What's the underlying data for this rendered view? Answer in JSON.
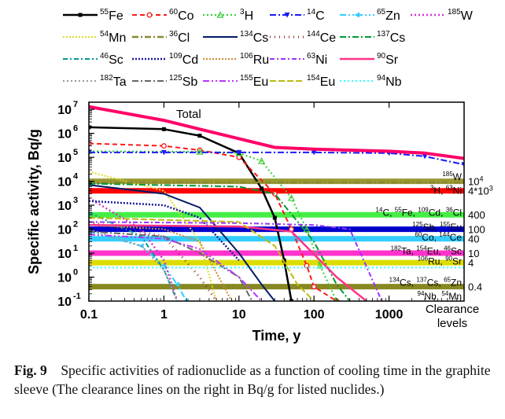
{
  "chart_data": {
    "type": "line",
    "xscale": "log",
    "yscale": "log",
    "xlim": [
      0.1,
      10000
    ],
    "ylim": [
      0.1,
      20000000
    ],
    "xlabel": "Time, y",
    "ylabel": "Specific activity, Bq/g",
    "x_ticks": [
      "0.1",
      "1",
      "10",
      "100",
      "1000"
    ],
    "y_ticks": [
      {
        "m": "10",
        "e": "7"
      },
      {
        "m": "10",
        "e": "6"
      },
      {
        "m": "10",
        "e": "5"
      },
      {
        "m": "10",
        "e": "4"
      },
      {
        "m": "10",
        "e": "3"
      },
      {
        "m": "10",
        "e": "2"
      },
      {
        "m": "10",
        "e": "1"
      },
      {
        "m": "10",
        "e": "0"
      },
      {
        "m": "10",
        "e": "-1"
      }
    ],
    "annotation_total": "Total",
    "legend": [
      {
        "sup": "55",
        "el": "Fe",
        "color": "#000000",
        "dash": "",
        "w": 2.5,
        "marker": "square"
      },
      {
        "sup": "60",
        "el": "Co",
        "color": "#ff1a1a",
        "dash": "6,4",
        "w": 2,
        "marker": "circle"
      },
      {
        "sup": "3",
        "el": "H",
        "color": "#33cc33",
        "dash": "2,3",
        "w": 2,
        "marker": "triangle"
      },
      {
        "sup": "14",
        "el": "C",
        "color": "#1a1aff",
        "dash": "8,3,2,3",
        "w": 2,
        "marker": "tri-down"
      },
      {
        "sup": "65",
        "el": "Zn",
        "color": "#33ccff",
        "dash": "8,3,2,3,2,3",
        "w": 2,
        "marker": "tri-left"
      },
      {
        "sup": "185",
        "el": "W",
        "color": "#cc33cc",
        "dash": "2,3",
        "w": 2.5,
        "marker": "none"
      },
      {
        "sup": "54",
        "el": "Mn",
        "color": "#dddd22",
        "dash": "2,2",
        "w": 2,
        "marker": "none"
      },
      {
        "sup": "36",
        "el": "Cl",
        "color": "#888833",
        "dash": "8,3,2,3",
        "w": 2.5,
        "marker": "none"
      },
      {
        "sup": "134",
        "el": "Cs",
        "color": "#001a66",
        "dash": "",
        "w": 2,
        "marker": "none"
      },
      {
        "sup": "144",
        "el": "Ce",
        "color": "#993333",
        "dash": "1,5",
        "w": 3,
        "marker": "none"
      },
      {
        "sup": "137",
        "el": "Cs",
        "color": "#009933",
        "dash": "8,3,2,3",
        "w": 2,
        "marker": "none"
      },
      {
        "sup": "46",
        "el": "Sc",
        "color": "#009999",
        "dash": "6,3,2,3",
        "w": 2,
        "marker": "none"
      },
      {
        "sup": "109",
        "el": "Cd",
        "color": "#1a1a99",
        "dash": "2,2",
        "w": 2.5,
        "marker": "none"
      },
      {
        "sup": "106",
        "el": "Ru",
        "color": "#cc8833",
        "dash": "2,2",
        "w": 2,
        "marker": "none"
      },
      {
        "sup": "63",
        "el": "Ni",
        "color": "#9933ff",
        "dash": "6,3,2,3",
        "w": 2,
        "marker": "none"
      },
      {
        "sup": "90",
        "el": "Sr",
        "color": "#ff3388",
        "dash": "",
        "w": 2.5,
        "marker": "none"
      },
      {
        "sup": "182",
        "el": "Ta",
        "color": "#999999",
        "dash": "2,3",
        "w": 2,
        "marker": "none"
      },
      {
        "sup": "125",
        "el": "Sb",
        "color": "#666666",
        "dash": "8,3,2,3",
        "w": 2,
        "marker": "none"
      },
      {
        "sup": "155",
        "el": "Eu",
        "color": "#bb33ff",
        "dash": "8,3,2,3,2,3",
        "w": 2,
        "marker": "none"
      },
      {
        "sup": "154",
        "el": "Eu",
        "color": "#bbbb11",
        "dash": "8,3",
        "w": 2,
        "marker": "none"
      },
      {
        "sup": "94",
        "el": "Nb",
        "color": "#33ffff",
        "dash": "2,3",
        "w": 2,
        "marker": "none"
      }
    ],
    "total": {
      "color": "#ff0066",
      "x": [
        0.1,
        1,
        3,
        10,
        30,
        100,
        1000,
        3000,
        10000
      ],
      "y": [
        13000000,
        3500000,
        1500000,
        600000,
        260000,
        220000,
        180000,
        150000,
        90000
      ]
    },
    "series": [
      {
        "name": "55Fe",
        "legend": 0,
        "x": [
          0.1,
          1,
          3,
          10,
          20,
          30,
          40,
          50
        ],
        "y": [
          1800000,
          1500000,
          800000,
          150000,
          5000,
          300,
          5,
          0.1
        ]
      },
      {
        "name": "60Co",
        "legend": 1,
        "x": [
          0.1,
          1,
          3,
          10,
          30,
          50,
          80,
          100,
          200
        ],
        "y": [
          380000,
          300000,
          200000,
          100000,
          3000,
          100,
          3,
          0.4,
          0.1
        ]
      },
      {
        "name": "3H",
        "legend": 2,
        "x": [
          0.1,
          3,
          10,
          20,
          50,
          80,
          120,
          200
        ],
        "y": [
          180000,
          170000,
          150000,
          70000,
          2000,
          100,
          3,
          0.1
        ]
      },
      {
        "name": "14C",
        "legend": 3,
        "x": [
          0.1,
          1,
          10,
          100,
          1000,
          3000,
          10000
        ],
        "y": [
          160000,
          160000,
          160000,
          160000,
          150000,
          110000,
          50000
        ]
      },
      {
        "name": "65Zn",
        "legend": 4,
        "x": [
          0.1,
          0.5,
          1,
          1.5,
          2
        ],
        "y": [
          80,
          20,
          3,
          0.5,
          0.1
        ]
      },
      {
        "name": "185W",
        "legend": 5,
        "x": [
          0.1,
          0.5,
          1,
          1.5
        ],
        "y": [
          2000,
          100,
          5,
          0.1
        ]
      },
      {
        "name": "54Mn",
        "legend": 6,
        "x": [
          0.1,
          1,
          3,
          5
        ],
        "y": [
          25000,
          4000,
          30,
          0.1
        ]
      },
      {
        "name": "36Cl",
        "legend": 7,
        "x": [
          0.1,
          10,
          100,
          1000,
          10000
        ],
        "y": [
          9000,
          9000,
          9000,
          9000,
          9000
        ]
      },
      {
        "name": "134Cs",
        "legend": 8,
        "x": [
          0.1,
          1,
          3,
          10,
          20,
          30
        ],
        "y": [
          7000,
          3000,
          800,
          10,
          0.5,
          0.1
        ]
      },
      {
        "name": "144Ce",
        "legend": 9,
        "x": [
          0.1,
          1,
          3,
          5
        ],
        "y": [
          200,
          50,
          1,
          0.1
        ]
      },
      {
        "name": "137Cs",
        "legend": 10,
        "x": [
          0.1,
          10,
          30,
          100,
          200,
          300
        ],
        "y": [
          8000,
          6000,
          3000,
          30,
          0.5,
          0.1
        ]
      },
      {
        "name": "46Sc",
        "legend": 11,
        "x": [
          0.1,
          0.5,
          1,
          1.5
        ],
        "y": [
          500,
          50,
          2,
          0.1
        ]
      },
      {
        "name": "109Cd",
        "legend": 12,
        "x": [
          0.1,
          1,
          3,
          10
        ],
        "y": [
          1500,
          1000,
          300,
          5
        ]
      },
      {
        "name": "106Ru",
        "legend": 13,
        "x": [
          0.1,
          1,
          3,
          8
        ],
        "y": [
          150,
          100,
          30,
          0.1
        ]
      },
      {
        "name": "63Ni",
        "legend": 14,
        "x": [
          0.1,
          10,
          100,
          300,
          800
        ],
        "y": [
          200,
          180,
          150,
          100,
          0.1
        ]
      },
      {
        "name": "90Sr",
        "legend": 15,
        "x": [
          0.1,
          10,
          50,
          200,
          500
        ],
        "y": [
          150,
          130,
          80,
          1,
          0.1
        ]
      },
      {
        "name": "182Ta",
        "legend": 16,
        "x": [
          0.1,
          0.5,
          1,
          1.5
        ],
        "y": [
          100,
          20,
          2,
          0.1
        ]
      },
      {
        "name": "125Sb",
        "legend": 17,
        "x": [
          0.1,
          1,
          3,
          10,
          15
        ],
        "y": [
          80,
          50,
          10,
          1,
          0.1
        ]
      },
      {
        "name": "155Eu",
        "legend": 18,
        "x": [
          0.1,
          1,
          3,
          10,
          20
        ],
        "y": [
          60,
          40,
          15,
          1,
          0.1
        ]
      },
      {
        "name": "154Eu",
        "legend": 19,
        "x": [
          0.1,
          10,
          30,
          60,
          100
        ],
        "y": [
          300,
          200,
          20,
          0.5,
          0.1
        ]
      },
      {
        "name": "94Nb",
        "legend": 20,
        "x": [
          0.1,
          10000
        ],
        "y": [
          2.5,
          2.5
        ]
      }
    ],
    "clearance_lines": [
      {
        "value": 4,
        "color": "#dddd00"
      },
      {
        "value": 10,
        "color": "#ff33cc"
      },
      {
        "value": 40,
        "color": "#33ccff"
      },
      {
        "value": 100,
        "color": "#0000cc"
      },
      {
        "value": 400,
        "color": "#44ee44"
      },
      {
        "value": 4000,
        "color": "#ff0000"
      },
      {
        "value": 10000,
        "color": "#999933"
      },
      {
        "value": 0.4,
        "color": "#888822"
      }
    ],
    "right_labels": [
      {
        "y": 15000,
        "parts": [
          {
            "s": "185"
          },
          {
            "t": "W"
          }
        ]
      },
      {
        "y": 4000,
        "parts": [
          {
            "s": "3"
          },
          {
            "t": "H, "
          },
          {
            "s": "63"
          },
          {
            "t": "Ni"
          }
        ]
      },
      {
        "y": 500,
        "parts": [
          {
            "s": "14"
          },
          {
            "t": "C, "
          },
          {
            "s": "55"
          },
          {
            "t": "Fe, "
          },
          {
            "s": "109"
          },
          {
            "t": "Cd, "
          },
          {
            "s": "36"
          },
          {
            "t": "Cl"
          }
        ]
      },
      {
        "y": 120,
        "parts": [
          {
            "s": "125"
          },
          {
            "t": "Sb, "
          },
          {
            "s": "155"
          },
          {
            "t": "Eu"
          }
        ]
      },
      {
        "y": 45,
        "parts": [
          {
            "s": "60"
          },
          {
            "t": "Co, "
          },
          {
            "s": "144"
          },
          {
            "t": "Ce"
          }
        ]
      },
      {
        "y": 12,
        "parts": [
          {
            "s": "182"
          },
          {
            "t": "Ta, "
          },
          {
            "s": "154"
          },
          {
            "t": "Eu, "
          },
          {
            "s": "46"
          },
          {
            "t": "Sc"
          }
        ]
      },
      {
        "y": 4.5,
        "parts": [
          {
            "s": "106"
          },
          {
            "t": "Ru, "
          },
          {
            "s": "90"
          },
          {
            "t": "Sr"
          }
        ]
      },
      {
        "y": 0.6,
        "parts": [
          {
            "s": "134"
          },
          {
            "t": "Cs, "
          },
          {
            "s": "137"
          },
          {
            "t": "Cs, "
          },
          {
            "s": "65"
          },
          {
            "t": "Zn"
          }
        ]
      },
      {
        "y": 0.16,
        "parts": [
          {
            "s": "94"
          },
          {
            "t": "Nb, "
          },
          {
            "s": "54"
          },
          {
            "t": "Mn"
          }
        ]
      }
    ],
    "clearance_values": [
      {
        "y": 10000,
        "text": "10",
        "sup": "4"
      },
      {
        "y": 4000,
        "text": "4*10",
        "sup": "3"
      },
      {
        "y": 400,
        "text": "400",
        "sup": ""
      },
      {
        "y": 100,
        "text": "100",
        "sup": ""
      },
      {
        "y": 40,
        "text": "40",
        "sup": ""
      },
      {
        "y": 10,
        "text": "10",
        "sup": ""
      },
      {
        "y": 4,
        "text": "4",
        "sup": ""
      },
      {
        "y": 0.4,
        "text": "0.4",
        "sup": ""
      }
    ],
    "clearance_caption": [
      "Clearance",
      "levels"
    ]
  },
  "caption": {
    "label": "Fig.  9",
    "text": "Specific activities of radionuclide as a function of cooling time in the graphite sleeve (The clearance lines on the right in Bq/g for listed nuclides.)"
  }
}
